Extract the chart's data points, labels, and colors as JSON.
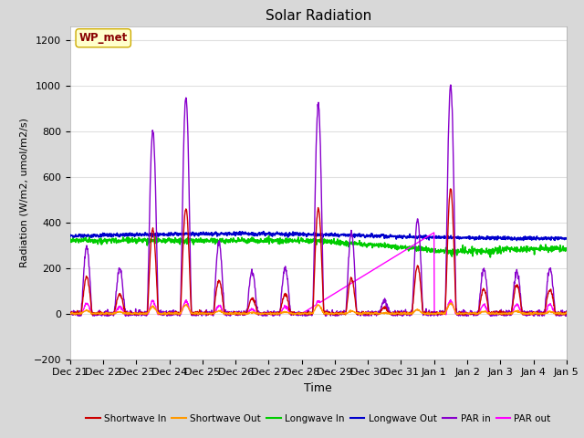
{
  "title": "Solar Radiation",
  "xlabel": "Time",
  "ylabel": "Radiation (W/m2, umol/m2/s)",
  "ylim": [
    -200,
    1260
  ],
  "yticks": [
    -200,
    0,
    200,
    400,
    600,
    800,
    1000,
    1200
  ],
  "annotation_text": "WP_met",
  "annotation_bg": "#ffffcc",
  "annotation_border": "#ccaa00",
  "annotation_text_color": "#880000",
  "colors": {
    "shortwave_in": "#cc0000",
    "shortwave_out": "#ff9900",
    "longwave_in": "#00cc00",
    "longwave_out": "#0000cc",
    "par_in": "#8800cc",
    "par_out": "#ff00ff"
  },
  "bg_color": "#d8d8d8",
  "plot_bg": "#ffffff",
  "grid_color": "#e0e0e0",
  "n_points": 1500,
  "x_start": 21.0,
  "x_end": 36.0,
  "x_tick_vals": [
    21,
    22,
    23,
    24,
    25,
    26,
    27,
    28,
    29,
    30,
    31,
    32,
    33,
    34,
    35,
    36
  ],
  "x_tick_labels": [
    "Dec 21",
    "Dec 22",
    "Dec 23",
    "Dec 24",
    "Dec 25",
    "Dec 26",
    "Dec 27",
    "Dec 28",
    "Dec 29",
    "Dec 30",
    "Dec 31",
    "Jan 1",
    "Jan 2",
    "Jan 3",
    "Jan 4",
    "Jan 5"
  ]
}
